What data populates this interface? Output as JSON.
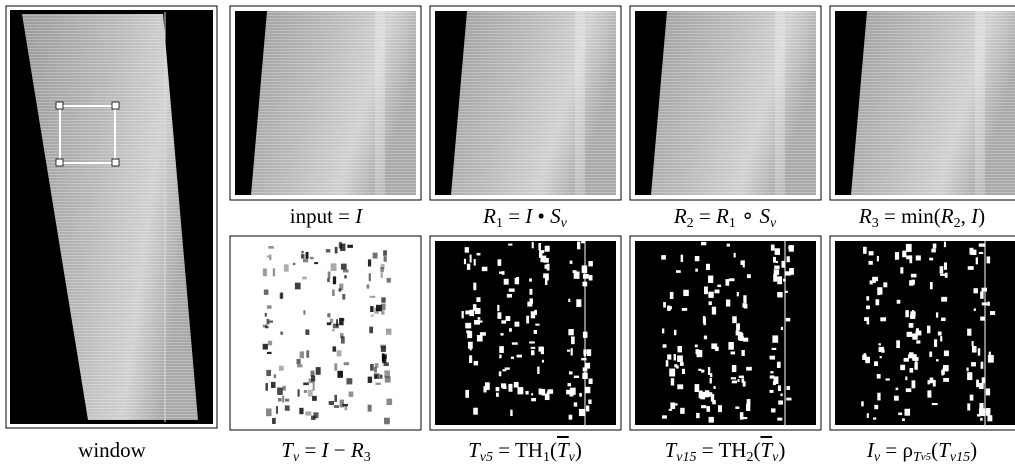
{
  "panels": [
    {
      "caption": [
        "window"
      ]
    },
    {
      "caption": [
        "input = ",
        "I"
      ]
    },
    {
      "caption": [
        "R",
        "1",
        " = ",
        "I",
        " • ",
        "S",
        "v"
      ]
    },
    {
      "caption": [
        "R",
        "2",
        " = ",
        "R",
        "1",
        " ∘ ",
        "S",
        "v"
      ]
    },
    {
      "caption": [
        "R",
        "3",
        " = min(",
        "R",
        "2",
        ", ",
        "I",
        ")"
      ]
    },
    {
      "caption": [
        "T",
        "v",
        " = ",
        "I",
        " − ",
        "R",
        "3"
      ]
    },
    {
      "caption": [
        "T",
        "v5",
        " = TH",
        "1",
        "(",
        "T",
        "v",
        ")"
      ]
    },
    {
      "caption": [
        "T",
        "v15",
        " = TH",
        "2",
        "(",
        "T",
        "v",
        ")"
      ]
    },
    {
      "caption": [
        "I",
        "v",
        " = ρ",
        "T",
        "v5",
        "(",
        "T",
        "v15",
        ")"
      ]
    }
  ]
}
